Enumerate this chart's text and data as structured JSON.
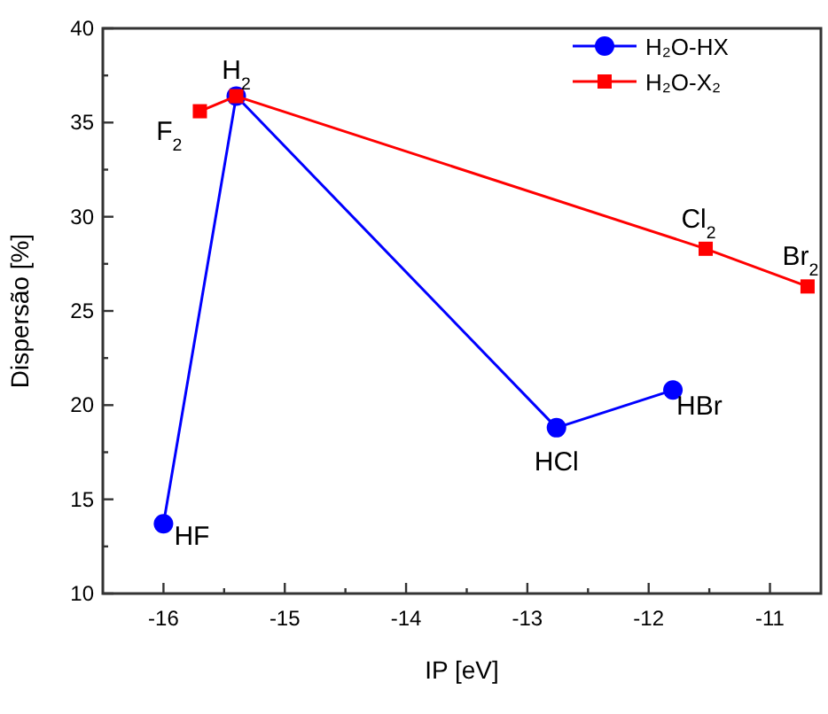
{
  "chart_data": {
    "type": "line",
    "xlabel": "IP [eV]",
    "ylabel": "Dispersão [%]",
    "xlim": [
      -16.5,
      -10.58
    ],
    "ylim": [
      10,
      40
    ],
    "xticks": [
      -16,
      {
        "value": -15.5,
        "label": null
      },
      -15,
      {
        "value": -14.5,
        "label": null
      },
      -14,
      {
        "value": -13.5,
        "label": null
      },
      -13,
      {
        "value": -12.5,
        "label": null
      },
      -12,
      {
        "value": -11.5,
        "label": null
      },
      -11
    ],
    "yticks": [
      10,
      {
        "value": 12.5,
        "label": null
      },
      15,
      {
        "value": 17.5,
        "label": null
      },
      20,
      {
        "value": 22.5,
        "label": null
      },
      25,
      {
        "value": 27.5,
        "label": null
      },
      30,
      {
        "value": 32.5,
        "label": null
      },
      35,
      {
        "value": 37.5,
        "label": null
      },
      40
    ],
    "series": [
      {
        "name": "H₂O-HX",
        "color": "#0000ff",
        "marker": "circle",
        "x": [
          -16.0,
          -15.4,
          -12.76,
          -11.8
        ],
        "values": [
          13.7,
          36.4,
          18.8,
          20.8
        ]
      },
      {
        "name": "H₂O-X₂",
        "color": "#ff0000",
        "marker": "square",
        "x": [
          -15.7,
          -15.4,
          -11.53,
          -10.69
        ],
        "values": [
          35.6,
          36.4,
          28.3,
          26.3
        ]
      }
    ],
    "annotations": [
      {
        "text": "HF",
        "x": -16.0,
        "y": 13.7
      },
      {
        "text": "H$_{2}$",
        "x": -15.4,
        "y": 36.4
      },
      {
        "text": "HCl",
        "x": -12.76,
        "y": 18.8
      },
      {
        "text": "HBr",
        "x": -11.8,
        "y": 20.8
      },
      {
        "text": "F$_{2}$",
        "x": -15.7,
        "y": 35.6
      },
      {
        "text": "Cl$_{2}$",
        "x": -11.53,
        "y": 28.3
      },
      {
        "text": "Br$_{2}$",
        "x": -10.69,
        "y": 26.3
      }
    ],
    "legend": "top right",
    "grid": false
  }
}
